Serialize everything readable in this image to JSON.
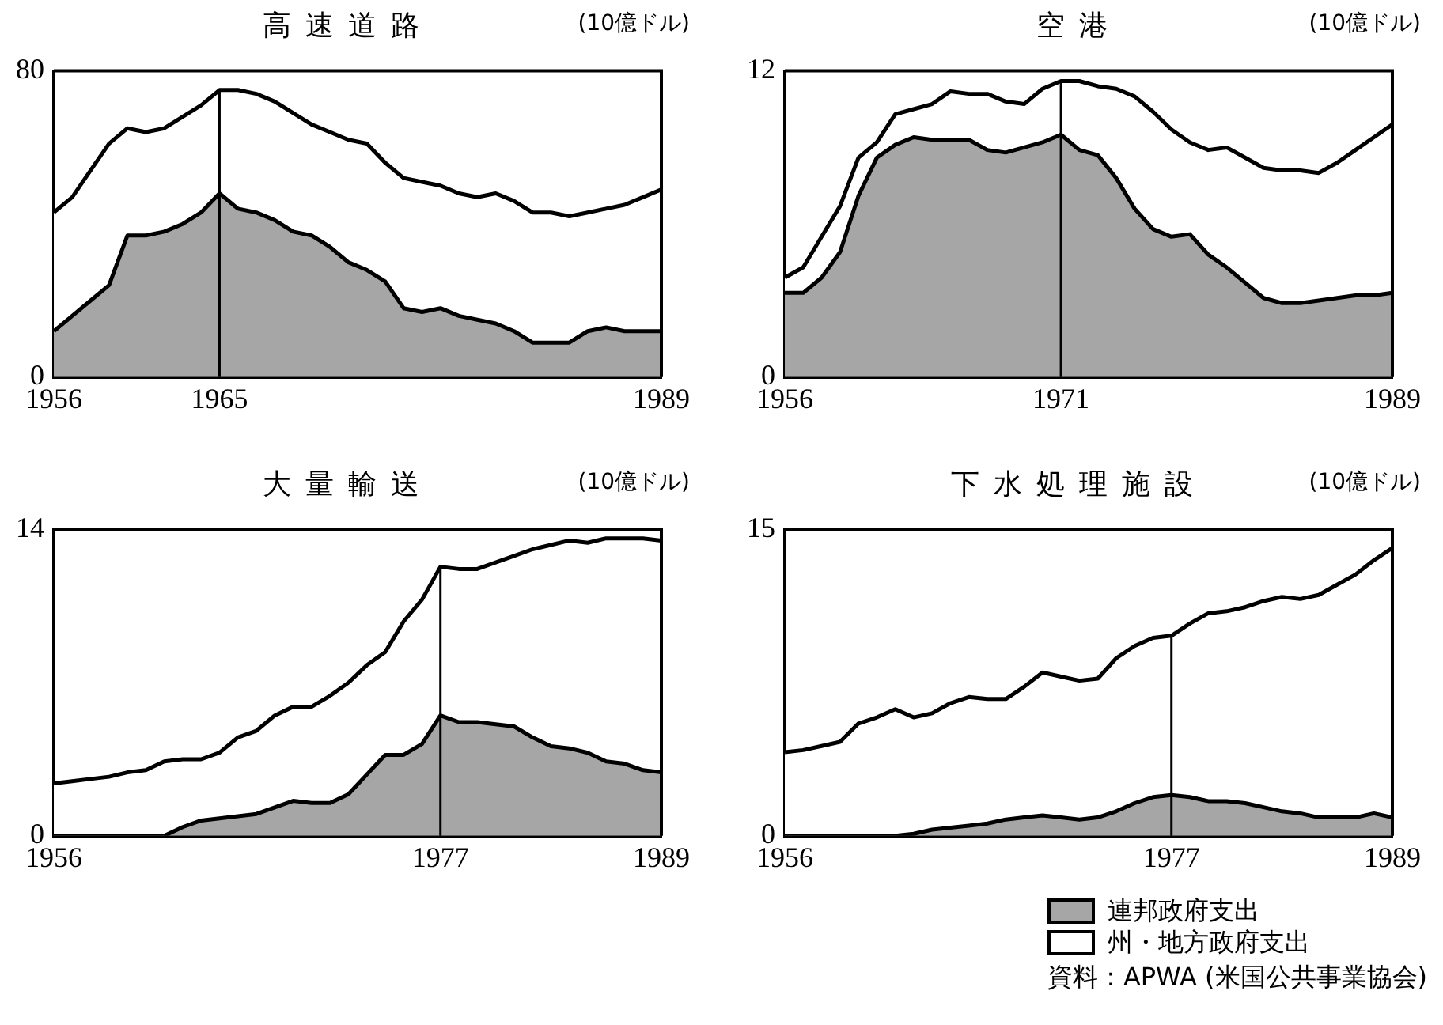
{
  "chart_data": [
    {
      "type": "area",
      "title": "高速道路",
      "ylabel": "(10億ドル)",
      "stacked": true,
      "grid": false,
      "xlim": [
        1956,
        1989
      ],
      "xticks": [
        1956,
        1965,
        1989
      ],
      "ylim": [
        0,
        80
      ],
      "yticks": [
        0,
        80
      ],
      "ref_lines": [
        {
          "axis": "x",
          "value": 1965
        }
      ],
      "x": [
        1956,
        1957,
        1958,
        1959,
        1960,
        1961,
        1962,
        1963,
        1964,
        1965,
        1966,
        1967,
        1968,
        1969,
        1970,
        1971,
        1972,
        1973,
        1974,
        1975,
        1976,
        1977,
        1978,
        1979,
        1980,
        1981,
        1982,
        1983,
        1984,
        1985,
        1986,
        1987,
        1988,
        1989
      ],
      "series": [
        {
          "color": "#a6a6a6",
          "values": [
            12,
            16,
            20,
            24,
            37,
            37,
            38,
            40,
            43,
            48,
            44,
            43,
            41,
            38,
            37,
            34,
            30,
            28,
            25,
            18,
            17,
            18,
            16,
            15,
            14,
            12,
            9,
            9,
            9,
            12,
            13,
            12,
            12,
            12
          ]
        },
        {
          "color": "#ffffff",
          "values": [
            31,
            31,
            34,
            37,
            28,
            27,
            27,
            28,
            28,
            27,
            31,
            31,
            31,
            31,
            29,
            30,
            32,
            33,
            31,
            34,
            34,
            32,
            32,
            32,
            34,
            34,
            34,
            34,
            33,
            31,
            31,
            33,
            35,
            37
          ]
        }
      ]
    },
    {
      "type": "area",
      "title": "空港",
      "ylabel": "(10億ドル)",
      "stacked": true,
      "grid": false,
      "xlim": [
        1956,
        1989
      ],
      "xticks": [
        1956,
        1971,
        1989
      ],
      "ylim": [
        0,
        12
      ],
      "yticks": [
        0,
        12
      ],
      "ref_lines": [
        {
          "axis": "x",
          "value": 1971
        }
      ],
      "x": [
        1956,
        1957,
        1958,
        1959,
        1960,
        1961,
        1962,
        1963,
        1964,
        1965,
        1966,
        1967,
        1968,
        1969,
        1970,
        1971,
        1972,
        1973,
        1974,
        1975,
        1976,
        1977,
        1978,
        1979,
        1980,
        1981,
        1982,
        1983,
        1984,
        1985,
        1986,
        1987,
        1988,
        1989
      ],
      "series": [
        {
          "color": "#a6a6a6",
          "values": [
            3.3,
            3.3,
            3.9,
            4.9,
            7.1,
            8.6,
            9.1,
            9.4,
            9.3,
            9.3,
            9.3,
            8.9,
            8.8,
            9.0,
            9.2,
            9.5,
            8.9,
            8.7,
            7.8,
            6.6,
            5.8,
            5.5,
            5.6,
            4.8,
            4.3,
            3.7,
            3.1,
            2.9,
            2.9,
            3.0,
            3.1,
            3.2,
            3.2,
            3.3
          ]
        },
        {
          "color": "#ffffff",
          "values": [
            0.6,
            1.0,
            1.6,
            1.8,
            1.5,
            0.6,
            1.2,
            1.1,
            1.4,
            1.9,
            1.8,
            2.2,
            2.0,
            1.7,
            2.1,
            2.1,
            2.7,
            2.7,
            3.5,
            4.4,
            4.6,
            4.2,
            3.6,
            4.1,
            4.7,
            4.9,
            5.1,
            5.2,
            5.2,
            5.0,
            5.3,
            5.7,
            6.2,
            6.6
          ]
        }
      ]
    },
    {
      "type": "area",
      "title": "大量輸送",
      "ylabel": "(10億ドル)",
      "stacked": true,
      "grid": false,
      "xlim": [
        1956,
        1989
      ],
      "xticks": [
        1956,
        1977,
        1989
      ],
      "ylim": [
        0,
        14
      ],
      "yticks": [
        0,
        14
      ],
      "ref_lines": [
        {
          "axis": "x",
          "value": 1977
        }
      ],
      "x": [
        1956,
        1957,
        1958,
        1959,
        1960,
        1961,
        1962,
        1963,
        1964,
        1965,
        1966,
        1967,
        1968,
        1969,
        1970,
        1971,
        1972,
        1973,
        1974,
        1975,
        1976,
        1977,
        1978,
        1979,
        1980,
        1981,
        1982,
        1983,
        1984,
        1985,
        1986,
        1987,
        1988,
        1989
      ],
      "series": [
        {
          "color": "#a6a6a6",
          "values": [
            0,
            0,
            0,
            0,
            0,
            0,
            0,
            0.4,
            0.7,
            0.8,
            0.9,
            1.0,
            1.3,
            1.6,
            1.5,
            1.5,
            1.9,
            2.8,
            3.7,
            3.7,
            4.2,
            5.5,
            5.2,
            5.2,
            5.1,
            5.0,
            4.5,
            4.1,
            4.0,
            3.8,
            3.4,
            3.3,
            3.0,
            2.9
          ]
        },
        {
          "color": "#ffffff",
          "values": [
            2.4,
            2.5,
            2.6,
            2.7,
            2.9,
            3.0,
            3.4,
            3.1,
            2.8,
            3.0,
            3.6,
            3.8,
            4.2,
            4.3,
            4.4,
            4.9,
            5.1,
            5.0,
            4.7,
            6.1,
            6.6,
            6.8,
            7.0,
            7.0,
            7.4,
            7.8,
            8.6,
            9.2,
            9.5,
            9.6,
            10.2,
            10.3,
            10.6,
            10.6
          ]
        }
      ]
    },
    {
      "type": "area",
      "title": "下水処理施設",
      "ylabel": "(10億ドル)",
      "stacked": true,
      "grid": false,
      "legend": "bottom right",
      "xlim": [
        1956,
        1989
      ],
      "xticks": [
        1956,
        1977,
        1989
      ],
      "ylim": [
        0,
        15
      ],
      "yticks": [
        0,
        15
      ],
      "ref_lines": [
        {
          "axis": "x",
          "value": 1977
        }
      ],
      "annotations": [
        "資料：APWA (米国公共事業協会)"
      ],
      "x": [
        1956,
        1957,
        1958,
        1959,
        1960,
        1961,
        1962,
        1963,
        1964,
        1965,
        1966,
        1967,
        1968,
        1969,
        1970,
        1971,
        1972,
        1973,
        1974,
        1975,
        1976,
        1977,
        1978,
        1979,
        1980,
        1981,
        1982,
        1983,
        1984,
        1985,
        1986,
        1987,
        1988,
        1989
      ],
      "series": [
        {
          "name": "連邦政府支出",
          "color": "#a6a6a6",
          "values": [
            0,
            0,
            0,
            0,
            0,
            0,
            0,
            0.1,
            0.3,
            0.4,
            0.5,
            0.6,
            0.8,
            0.9,
            1.0,
            0.9,
            0.8,
            0.9,
            1.2,
            1.6,
            1.9,
            2.0,
            1.9,
            1.7,
            1.7,
            1.6,
            1.4,
            1.2,
            1.1,
            0.9,
            0.9,
            0.9,
            1.1,
            0.9
          ]
        },
        {
          "name": "州・地方政府支出",
          "color": "#ffffff",
          "values": [
            4.1,
            4.2,
            4.4,
            4.6,
            5.5,
            5.8,
            6.2,
            5.7,
            5.7,
            6.1,
            6.3,
            6.1,
            5.9,
            6.4,
            7.0,
            6.9,
            6.8,
            6.8,
            7.5,
            7.7,
            7.8,
            7.8,
            8.5,
            9.2,
            9.3,
            9.6,
            10.1,
            10.5,
            10.5,
            10.9,
            11.4,
            11.9,
            12.4,
            13.2
          ]
        }
      ]
    }
  ]
}
